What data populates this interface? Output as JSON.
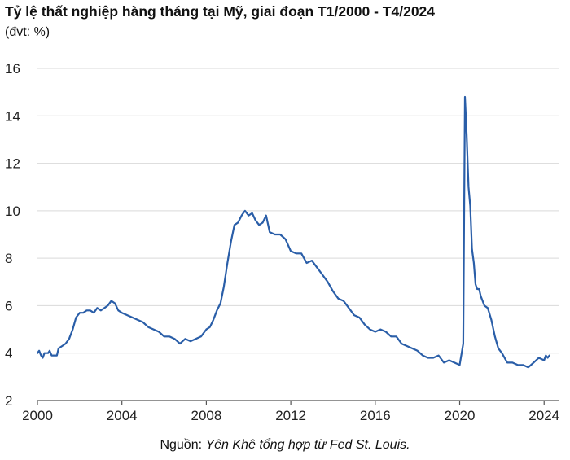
{
  "title": "Tỷ lệ thất nghiệp hàng tháng tại Mỹ, giai đoạn T1/2000 - T4/2024",
  "subtitle": "(đvt: %)",
  "source_prefix": "Nguồn: ",
  "source_text": "Yên Khê tổng hợp từ Fed St. Louis.",
  "colors": {
    "line": "#2a5ea8",
    "grid": "#d9d9d9",
    "axis": "#555555"
  },
  "chart_data": {
    "type": "line",
    "title": "Tỷ lệ thất nghiệp hàng tháng tại Mỹ, giai đoạn T1/2000 - T4/2024",
    "xlabel": "",
    "ylabel": "",
    "xlim": [
      2000,
      2024.3
    ],
    "ylim": [
      2,
      16
    ],
    "y_ticks": [
      2,
      4,
      6,
      8,
      10,
      12,
      14,
      16
    ],
    "x_ticks": [
      2000,
      2004,
      2008,
      2012,
      2016,
      2020,
      2024
    ],
    "grid": "horizontal",
    "legend": "none",
    "series": [
      {
        "x": [
          2000.0,
          2000.08,
          2000.17,
          2000.25,
          2000.33,
          2000.42,
          2000.5,
          2000.58,
          2000.67,
          2000.75,
          2000.83,
          2000.92,
          2001.0,
          2001.17,
          2001.33,
          2001.5,
          2001.67,
          2001.83,
          2002.0,
          2002.17,
          2002.33,
          2002.5,
          2002.67,
          2002.83,
          2003.0,
          2003.17,
          2003.33,
          2003.5,
          2003.67,
          2003.83,
          2004.0,
          2004.25,
          2004.5,
          2004.75,
          2005.0,
          2005.25,
          2005.5,
          2005.75,
          2006.0,
          2006.25,
          2006.5,
          2006.75,
          2007.0,
          2007.25,
          2007.5,
          2007.75,
          2008.0,
          2008.17,
          2008.33,
          2008.5,
          2008.67,
          2008.83,
          2009.0,
          2009.17,
          2009.33,
          2009.5,
          2009.67,
          2009.83,
          2010.0,
          2010.17,
          2010.33,
          2010.5,
          2010.67,
          2010.83,
          2011.0,
          2011.25,
          2011.5,
          2011.75,
          2012.0,
          2012.25,
          2012.5,
          2012.75,
          2013.0,
          2013.25,
          2013.5,
          2013.75,
          2014.0,
          2014.25,
          2014.5,
          2014.75,
          2015.0,
          2015.25,
          2015.5,
          2015.75,
          2016.0,
          2016.25,
          2016.5,
          2016.75,
          2017.0,
          2017.25,
          2017.5,
          2017.75,
          2018.0,
          2018.25,
          2018.5,
          2018.75,
          2019.0,
          2019.25,
          2019.5,
          2019.75,
          2020.0,
          2020.17,
          2020.25,
          2020.33,
          2020.42,
          2020.5,
          2020.58,
          2020.67,
          2020.75,
          2020.83,
          2020.92,
          2021.0,
          2021.17,
          2021.33,
          2021.5,
          2021.67,
          2021.83,
          2022.0,
          2022.25,
          2022.5,
          2022.75,
          2023.0,
          2023.25,
          2023.5,
          2023.75,
          2024.0,
          2024.08,
          2024.17,
          2024.25
        ],
        "values": [
          4.0,
          4.1,
          3.9,
          3.8,
          4.0,
          4.0,
          4.0,
          4.1,
          3.9,
          3.9,
          3.9,
          3.9,
          4.2,
          4.3,
          4.4,
          4.6,
          5.0,
          5.5,
          5.7,
          5.7,
          5.8,
          5.8,
          5.7,
          5.9,
          5.8,
          5.9,
          6.0,
          6.2,
          6.1,
          5.8,
          5.7,
          5.6,
          5.5,
          5.4,
          5.3,
          5.1,
          5.0,
          4.9,
          4.7,
          4.7,
          4.6,
          4.4,
          4.6,
          4.5,
          4.6,
          4.7,
          5.0,
          5.1,
          5.4,
          5.8,
          6.1,
          6.8,
          7.8,
          8.7,
          9.4,
          9.5,
          9.8,
          10.0,
          9.8,
          9.9,
          9.6,
          9.4,
          9.5,
          9.8,
          9.1,
          9.0,
          9.0,
          8.8,
          8.3,
          8.2,
          8.2,
          7.8,
          7.9,
          7.6,
          7.3,
          7.0,
          6.6,
          6.3,
          6.2,
          5.9,
          5.6,
          5.5,
          5.2,
          5.0,
          4.9,
          5.0,
          4.9,
          4.7,
          4.7,
          4.4,
          4.3,
          4.2,
          4.1,
          3.9,
          3.8,
          3.8,
          3.9,
          3.6,
          3.7,
          3.6,
          3.5,
          4.4,
          14.8,
          13.2,
          11.0,
          10.2,
          8.4,
          7.8,
          6.9,
          6.7,
          6.7,
          6.4,
          6.0,
          5.9,
          5.4,
          4.7,
          4.2,
          4.0,
          3.6,
          3.6,
          3.5,
          3.5,
          3.4,
          3.6,
          3.8,
          3.7,
          3.9,
          3.8,
          3.9
        ]
      }
    ]
  }
}
